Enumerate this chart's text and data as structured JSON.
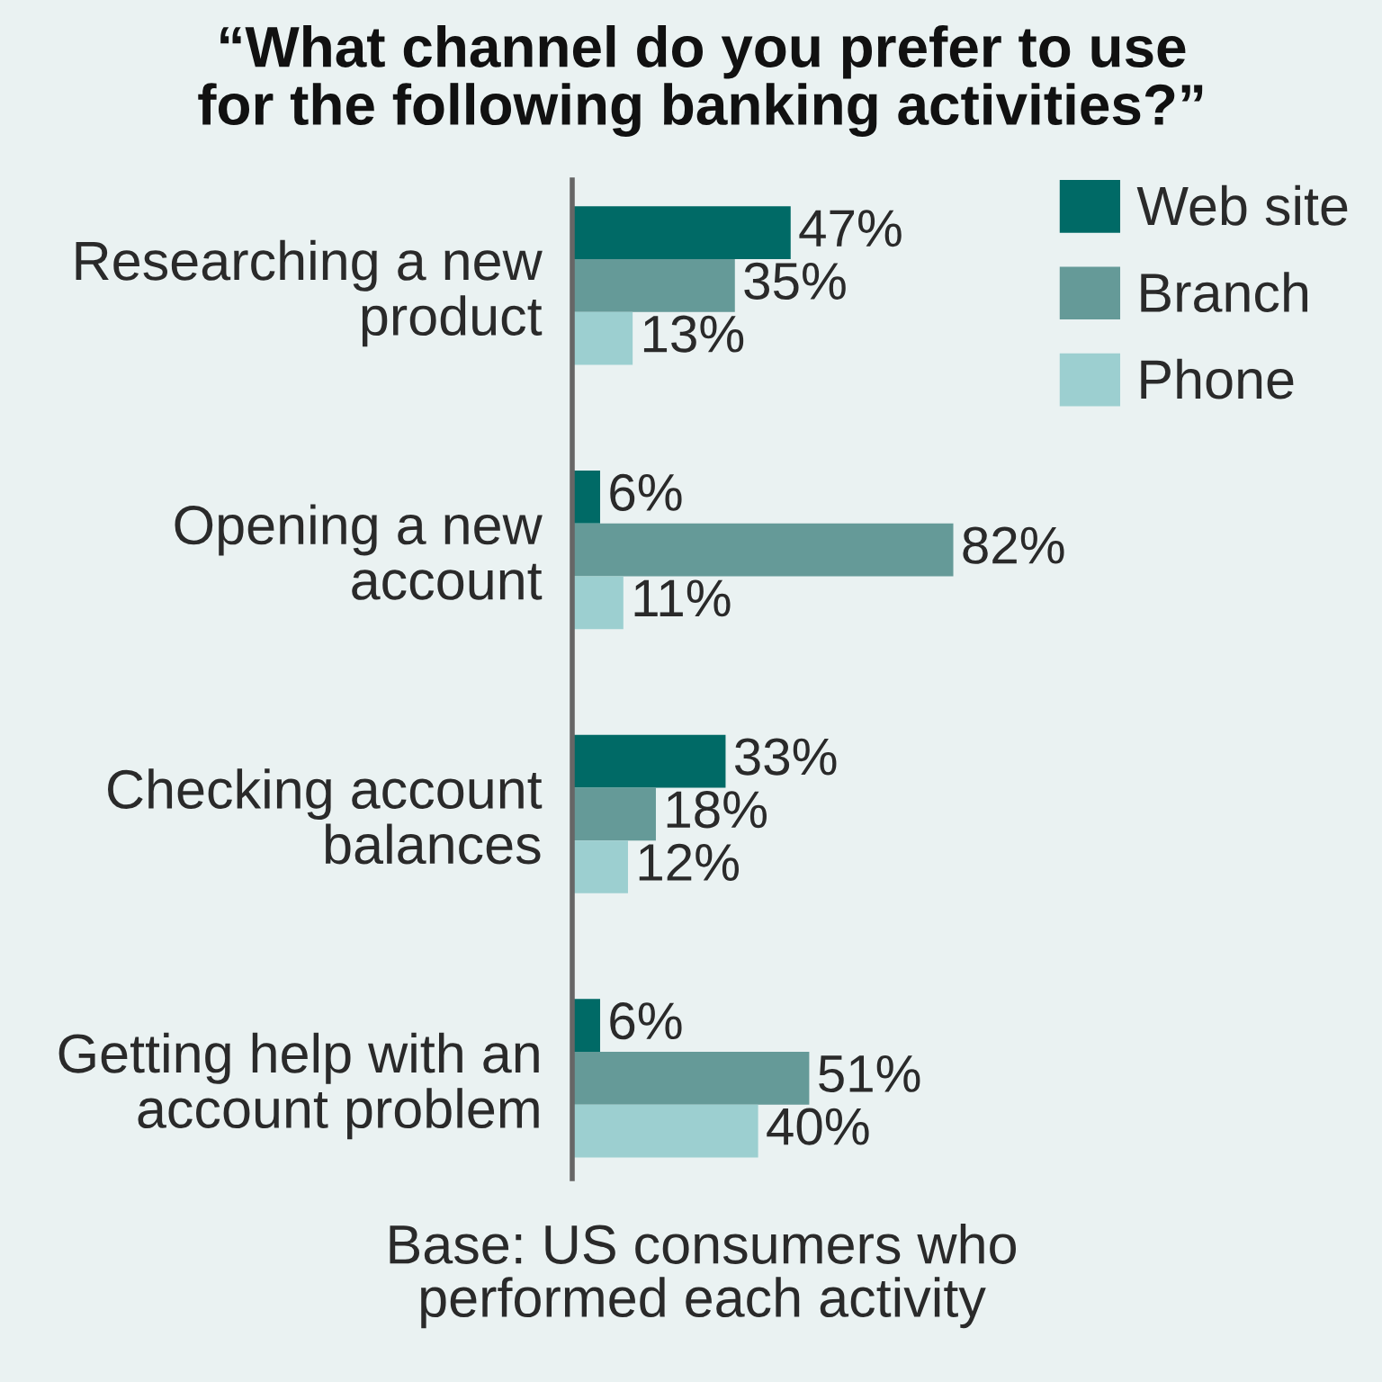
{
  "chart_data": {
    "type": "bar",
    "orientation": "horizontal",
    "title": "“What channel do you prefer to use\nfor the following banking activities?”",
    "categories": [
      "Researching a new\nproduct",
      "Opening a new\naccount",
      "Checking account\nbalances",
      "Getting help with an\naccount problem"
    ],
    "series": [
      {
        "name": "Web site",
        "color": "#006a66",
        "values": [
          47,
          6,
          33,
          6
        ],
        "value_labels": [
          "47%",
          "6%",
          "33%",
          "6%"
        ]
      },
      {
        "name": "Branch",
        "color": "#659a98",
        "values": [
          35,
          82,
          18,
          51
        ],
        "value_labels": [
          "35%",
          "82%",
          "18%",
          "51%"
        ]
      },
      {
        "name": "Phone",
        "color": "#9ccfd0",
        "values": [
          13,
          11,
          12,
          40
        ],
        "value_labels": [
          "13%",
          "11%",
          "12%",
          "40%"
        ]
      }
    ],
    "annotations": [
      "Base: US consumers who\nperformed each activity"
    ],
    "legend": "top right",
    "grid": false,
    "tick_labels": "y"
  }
}
